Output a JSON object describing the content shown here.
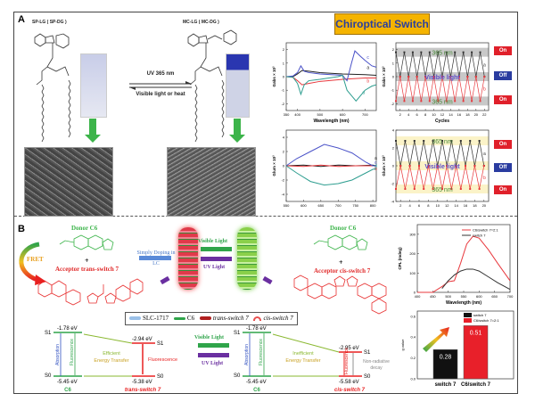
{
  "panel_a": {
    "label": "A",
    "left_compound": "SP-LG ( SP-DG )",
    "right_compound": "MC-LG ( MC-DG )",
    "forward": "UV 365 nm",
    "reverse": "Visible light or heat",
    "banner": "Chiroptical Switch",
    "switch_labels": {
      "on": "On",
      "off": "Off",
      "uv": "365 nm",
      "vis": "Visible light"
    },
    "colors": {
      "on": "#e0202a",
      "off": "#2a3ca0",
      "arrow": "#3cb44a",
      "banner": "#f5b400"
    }
  },
  "panel_b": {
    "label": "B",
    "donor": "Donor C6",
    "plus": "+",
    "acceptor_trans": "Acceptor trans-switch 7",
    "acceptor_cis": "Acceptor cis-switch 7",
    "fret": "FRET",
    "doping": "Simply Doping in LC",
    "visible_light": "Visible Light",
    "uv_light": "UV Light",
    "legend": [
      "SLC-1717",
      "C6",
      "trans-switch 7",
      "cis-switch 7"
    ],
    "energy_left": {
      "s1": "S1",
      "s0": "S0",
      "c6_s1": "-1.78 eV",
      "c6_s0": "-5.45 eV",
      "acc_s1": "-2.94 eV",
      "acc_s0": "-5.38 eV",
      "absorption": "Absorption",
      "fluorescence": "Fluorescence",
      "transfer": "Efficient Energy Transfer",
      "acc_fluor": "Fluorescence",
      "donor": "C6",
      "acceptor": "trans-switch 7"
    },
    "energy_right": {
      "s1": "S1",
      "s0": "S0",
      "c6_s1": "-1.78 eV",
      "c6_s0": "-5.45 eV",
      "acc_s1": "-2.95 eV",
      "acc_s0": "-5.58 eV",
      "absorption": "Absorption",
      "fluorescence": "Fluorescence",
      "transfer": "Inefficient Energy Transfer",
      "acc_fluor": "Fluorescence",
      "nonrad": "Non-radiative decay",
      "donor": "C6",
      "acceptor": "cis-switch 7"
    }
  },
  "chart_data": [
    {
      "type": "line",
      "xlabel": "Wavelength (nm)",
      "ylabel": "Gabs × 10³",
      "xlim": [
        350,
        750
      ],
      "ylim": [
        -2.5,
        2.5
      ],
      "xticks": [
        350,
        400,
        500,
        600,
        700
      ],
      "yticks": [
        -2,
        -1,
        0,
        1,
        2
      ],
      "series": [
        {
          "name": "a",
          "color": "#222222",
          "x": [
            350,
            380,
            400,
            420,
            450,
            500,
            600,
            700,
            750
          ],
          "y": [
            0,
            0,
            0.2,
            0.45,
            0.4,
            0.3,
            0.2,
            0.15,
            0.1
          ]
        },
        {
          "name": "b",
          "color": "#e8383d",
          "x": [
            350,
            380,
            400,
            420,
            450,
            500,
            600,
            700,
            750
          ],
          "y": [
            0,
            -0.05,
            -0.3,
            -0.6,
            -0.5,
            -0.35,
            -0.2,
            -0.1,
            -0.1
          ]
        },
        {
          "name": "c",
          "color": "#4a52c8",
          "x": [
            350,
            380,
            400,
            415,
            430,
            450,
            500,
            600,
            620,
            640,
            655,
            680,
            700,
            730,
            750
          ],
          "y": [
            0,
            0.05,
            0.3,
            0.8,
            0.4,
            0.3,
            0.2,
            0.1,
            -0.3,
            1.0,
            1.9,
            1.5,
            1.2,
            0.8,
            0.7
          ]
        },
        {
          "name": "d",
          "color": "#2f9e90",
          "x": [
            350,
            380,
            400,
            415,
            430,
            450,
            500,
            580,
            600,
            620,
            640,
            660,
            680,
            700,
            730,
            750
          ],
          "y": [
            0,
            -0.05,
            -0.5,
            -1.3,
            -0.6,
            -0.3,
            -0.2,
            0,
            0.1,
            -1.0,
            -1.4,
            -1.8,
            -1.4,
            -1.0,
            -0.7,
            -0.6
          ]
        }
      ]
    },
    {
      "type": "line",
      "xlabel": "Cycles",
      "ylabel": "Gabs × 10³",
      "xlim": [
        1,
        23
      ],
      "ylim": [
        -2.5,
        2.5
      ],
      "xticks": [
        2,
        4,
        6,
        8,
        10,
        12,
        14,
        16,
        18,
        20,
        22
      ],
      "yticks": [
        -2,
        -1,
        0,
        1,
        2
      ],
      "series": [
        {
          "name": "a",
          "color": "#333333",
          "peak": 1.8
        },
        {
          "name": "b",
          "color": "#e8383d",
          "peak": -1.8
        }
      ],
      "cycles": 22
    },
    {
      "type": "line",
      "xlabel": "",
      "ylabel": "Glum × 10³",
      "xlim": [
        550,
        810
      ],
      "ylim": [
        -5,
        5
      ],
      "xticks": [
        550,
        600,
        650,
        700,
        750,
        800
      ],
      "yticks": [
        -4,
        -2,
        0,
        2,
        4
      ],
      "series": [
        {
          "name": "a",
          "color": "#222222",
          "x": [
            550,
            600,
            650,
            700,
            750,
            800,
            810
          ],
          "y": [
            0,
            0.1,
            -0.1,
            0.1,
            0,
            0.1,
            0
          ]
        },
        {
          "name": "b",
          "color": "#e8383d",
          "x": [
            550,
            600,
            650,
            700,
            750,
            800,
            810
          ],
          "y": [
            0,
            -0.1,
            0.1,
            -0.1,
            0,
            0,
            0
          ]
        },
        {
          "name": "c",
          "color": "#4a52c8",
          "x": [
            550,
            580,
            620,
            660,
            700,
            740,
            780,
            800,
            810
          ],
          "y": [
            0,
            1,
            2,
            3,
            2.5,
            1.8,
            0.5,
            0,
            0
          ]
        },
        {
          "name": "d",
          "color": "#2f9e90",
          "x": [
            550,
            580,
            620,
            660,
            700,
            740,
            780,
            800,
            810
          ],
          "y": [
            0,
            -1,
            -2.2,
            -2.7,
            -2.5,
            -2,
            -1,
            -0.5,
            -0.4
          ]
        }
      ]
    },
    {
      "type": "line",
      "xlabel": "",
      "ylabel": "Glum × 10³",
      "xlim": [
        1,
        21
      ],
      "ylim": [
        -4,
        4
      ],
      "xticks": [
        2,
        4,
        6,
        8,
        10,
        12,
        14,
        16,
        18,
        20
      ],
      "yticks": [
        -4,
        -2,
        0,
        2,
        4
      ],
      "series": [
        {
          "name": "a",
          "color": "#333333",
          "peak": 2.8
        },
        {
          "name": "b",
          "color": "#e8383d",
          "peak": -2.6
        }
      ],
      "cycles": 20
    },
    {
      "type": "line",
      "xlabel": "Wavelength (nm)",
      "ylabel": "CPL (mdeg)",
      "xlim": [
        400,
        700
      ],
      "ylim": [
        0,
        350
      ],
      "xticks": [
        400,
        450,
        500,
        550,
        600,
        650,
        700
      ],
      "yticks": [
        0,
        100,
        200,
        300
      ],
      "series": [
        {
          "name": "C6/switch 7=2:1",
          "color": "#e8383d",
          "x": [
            400,
            450,
            480,
            500,
            520,
            540,
            560,
            580,
            600,
            630,
            660,
            700
          ],
          "y": [
            0,
            0,
            30,
            55,
            60,
            150,
            250,
            290,
            280,
            220,
            150,
            60
          ]
        },
        {
          "name": "switch 7",
          "color": "#333333",
          "x": [
            480,
            500,
            520,
            540,
            560,
            580,
            600,
            630,
            660,
            700
          ],
          "y": [
            20,
            60,
            90,
            110,
            120,
            120,
            110,
            80,
            50,
            15
          ]
        }
      ]
    },
    {
      "type": "bar",
      "ylabel": "g value",
      "categories": [
        "switch 7",
        "C6/switch 7"
      ],
      "values": [
        0.28,
        0.51
      ],
      "ylim": [
        0,
        0.65
      ],
      "yticks": [
        0.0,
        0.2,
        0.4,
        0.6
      ],
      "legend": [
        "switch 7",
        "C6/switch 7=2:1"
      ],
      "colors": [
        "#111111",
        "#e8202a"
      ]
    }
  ]
}
